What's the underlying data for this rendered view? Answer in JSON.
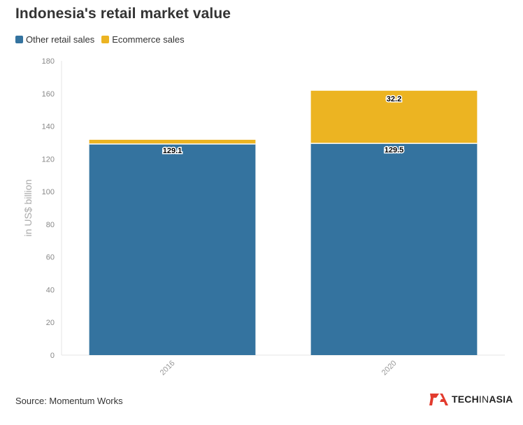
{
  "title": "Indonesia's retail market value",
  "legend": [
    {
      "label": "Other retail sales",
      "color": "#34739f"
    },
    {
      "label": "Ecommerce sales",
      "color": "#ecb422"
    }
  ],
  "source": "Source: Momentum Works",
  "logo": {
    "brand_bold": "TECH",
    "brand_mid": "IN",
    "brand_end": "ASIA",
    "mark_color": "#e23b2e"
  },
  "chart_data": {
    "type": "bar",
    "stacked": true,
    "categories": [
      "2016",
      "2020"
    ],
    "series": [
      {
        "name": "Other retail sales",
        "color": "#34739f",
        "values": [
          129.1,
          129.5
        ],
        "labels": [
          "129.1",
          "129.5"
        ]
      },
      {
        "name": "Ecommerce sales",
        "color": "#ecb422",
        "values": [
          2.6,
          32.2
        ],
        "labels": [
          "",
          "32.2"
        ]
      }
    ],
    "ylabel": "in US$ billion",
    "ylim": [
      0,
      180
    ],
    "yticks": [
      0,
      20,
      40,
      60,
      80,
      100,
      120,
      140,
      160,
      180
    ]
  }
}
